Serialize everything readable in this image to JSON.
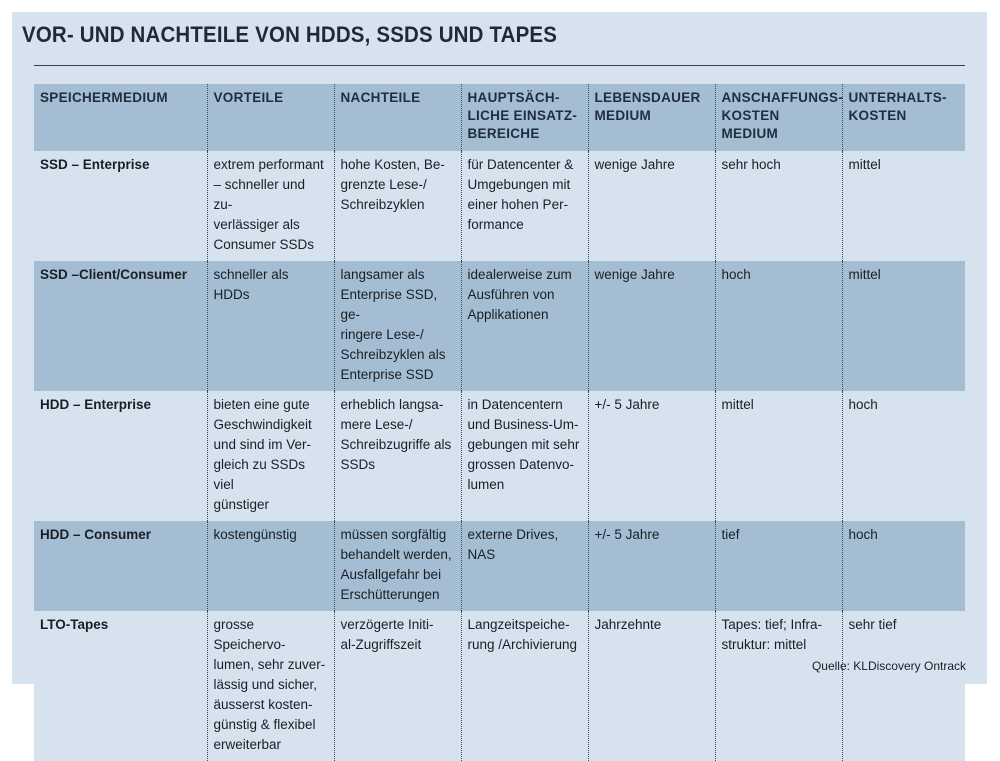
{
  "title": "VOR- UND NACHTEILE VON HDDS, SSDS UND TAPES",
  "columns": [
    "SPEICHERMEDIUM",
    "VORTEILE",
    "NACHTEILE",
    "HAUPTSÄCH-\nLICHE EINSATZ-\nBEREICHE",
    "LEBENSDAUER\nMEDIUM",
    "ANSCHAFFUNGS-\nKOSTEN MEDIUM",
    "UNTERHALTS-\nKOSTEN"
  ],
  "rows": [
    {
      "medium": "SSD – Enterprise",
      "vorteile": "extrem performant\n– schneller und zu-\nverlässiger als\nConsumer SSDs",
      "nachteile": "hohe Kosten, Be-\ngrenzte Lese-/\nSchreibzyklen",
      "einsatz": "für Datencenter &\nUmgebungen mit\neiner hohen Per-\nformance",
      "lebensdauer": "wenige Jahre",
      "anschaffung": "sehr hoch",
      "unterhalt": "mittel"
    },
    {
      "medium": "SSD –Client/Consumer",
      "vorteile": "schneller als HDDs",
      "nachteile": "langsamer als\nEnterprise SSD, ge-\nringere Lese-/\nSchreibzyklen als\nEnterprise SSD",
      "einsatz": "idealerweise zum\nAusführen von\nApplikationen",
      "lebensdauer": "wenige Jahre",
      "anschaffung": "hoch",
      "unterhalt": "mittel"
    },
    {
      "medium": "HDD – Enterprise",
      "vorteile": "bieten eine gute\nGeschwindigkeit\nund sind im Ver-\ngleich zu SSDs viel\ngünstiger",
      "nachteile": "erheblich langsa-\nmere Lese-/\nSchreibzugriffe als\nSSDs",
      "einsatz": "in Datencentern\nund Business-Um-\ngebungen mit sehr\ngrossen Datenvo-\nlumen",
      "lebensdauer": "+/- 5 Jahre",
      "anschaffung": "mittel",
      "unterhalt": "hoch"
    },
    {
      "medium": "HDD – Consumer",
      "vorteile": "kostengünstig",
      "nachteile": "müssen sorgfältig\nbehandelt werden,\nAusfallgefahr bei\nErschütterungen",
      "einsatz": "externe Drives,\nNAS",
      "lebensdauer": "+/- 5 Jahre",
      "anschaffung": "tief",
      "unterhalt": "hoch"
    },
    {
      "medium": "LTO-Tapes",
      "vorteile": "grosse Speichervo-\nlumen, sehr zuver-\nlässig und sicher,\näusserst kosten-\ngünstig & flexibel\nerweiterbar",
      "nachteile": "verzögerte Initi-\nal-Zugriffszeit",
      "einsatz": "Langzeitspeiche-\nrung /Archivierung",
      "lebensdauer": "Jahrzehnte",
      "anschaffung": "Tapes: tief; Infra-\nstruktur: mittel",
      "unterhalt": "sehr tief"
    }
  ],
  "source": "Quelle: KLDiscovery Ontrack"
}
